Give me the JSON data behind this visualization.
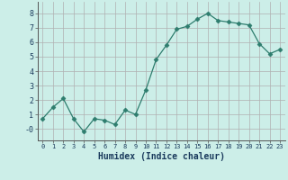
{
  "x": [
    0,
    1,
    2,
    3,
    4,
    5,
    6,
    7,
    8,
    9,
    10,
    11,
    12,
    13,
    14,
    15,
    16,
    17,
    18,
    19,
    20,
    21,
    22,
    23
  ],
  "y": [
    0.7,
    1.5,
    2.1,
    0.7,
    -0.2,
    0.7,
    0.6,
    0.3,
    1.3,
    1.0,
    2.7,
    4.8,
    5.8,
    6.9,
    7.1,
    7.6,
    8.0,
    7.5,
    7.4,
    7.3,
    7.2,
    5.9,
    5.2,
    5.5
  ],
  "line_color": "#2e7d6e",
  "marker": "D",
  "marker_size": 2.5,
  "background_color": "#cceee8",
  "grid_color": "#b0b0b0",
  "xlabel": "Humidex (Indice chaleur)",
  "xlim": [
    -0.5,
    23.5
  ],
  "ylim": [
    -0.8,
    8.8
  ],
  "yticks": [
    0,
    1,
    2,
    3,
    4,
    5,
    6,
    7,
    8
  ],
  "ytick_labels": [
    "-0",
    "1",
    "2",
    "3",
    "4",
    "5",
    "6",
    "7",
    "8"
  ],
  "xticks": [
    0,
    1,
    2,
    3,
    4,
    5,
    6,
    7,
    8,
    9,
    10,
    11,
    12,
    13,
    14,
    15,
    16,
    17,
    18,
    19,
    20,
    21,
    22,
    23
  ]
}
